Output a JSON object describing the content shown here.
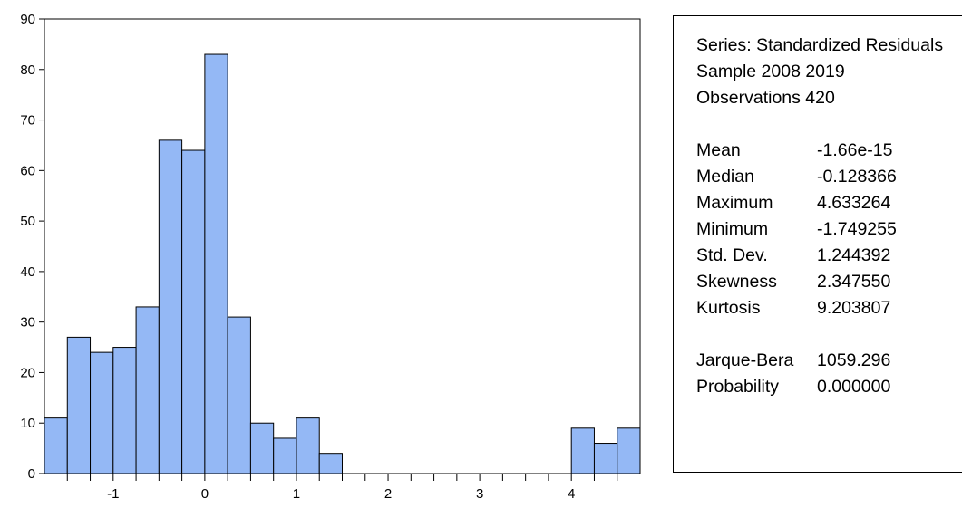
{
  "chart_data": {
    "type": "bar",
    "subtype": "histogram",
    "bin_width": 0.25,
    "bins": [
      {
        "from": -1.75,
        "to": -1.5,
        "count": 11
      },
      {
        "from": -1.5,
        "to": -1.25,
        "count": 27
      },
      {
        "from": -1.25,
        "to": -1.0,
        "count": 24
      },
      {
        "from": -1.0,
        "to": -0.75,
        "count": 25
      },
      {
        "from": -0.75,
        "to": -0.5,
        "count": 33
      },
      {
        "from": -0.5,
        "to": -0.25,
        "count": 66
      },
      {
        "from": -0.25,
        "to": 0.0,
        "count": 64
      },
      {
        "from": 0.0,
        "to": 0.25,
        "count": 83
      },
      {
        "from": 0.25,
        "to": 0.5,
        "count": 31
      },
      {
        "from": 0.5,
        "to": 0.75,
        "count": 10
      },
      {
        "from": 0.75,
        "to": 1.0,
        "count": 7
      },
      {
        "from": 1.0,
        "to": 1.25,
        "count": 11
      },
      {
        "from": 1.25,
        "to": 1.5,
        "count": 4
      },
      {
        "from": 4.0,
        "to": 4.25,
        "count": 9
      },
      {
        "from": 4.25,
        "to": 4.5,
        "count": 6
      },
      {
        "from": 4.5,
        "to": 4.75,
        "count": 9
      }
    ],
    "xlim": [
      -1.75,
      4.75
    ],
    "ylim": [
      0,
      90
    ],
    "x_ticks": [
      -1,
      0,
      1,
      2,
      3,
      4
    ],
    "y_ticks": [
      0,
      10,
      20,
      30,
      40,
      50,
      60,
      70,
      80,
      90
    ],
    "grid": false,
    "bar_color": "#94b8f5",
    "bar_edge_color": "#000000"
  },
  "stats": {
    "series": "Series: Standardized Residuals",
    "sample": "Sample 2008 2019",
    "observations": "Observations 420",
    "rows": [
      {
        "label": "Mean",
        "value": "-1.66e-15"
      },
      {
        "label": "Median",
        "value": "-0.128366"
      },
      {
        "label": "Maximum",
        "value": "4.633264"
      },
      {
        "label": "Minimum",
        "value": "-1.749255"
      },
      {
        "label": "Std. Dev.",
        "value": "1.244392"
      },
      {
        "label": "Skewness",
        "value": "2.347550"
      },
      {
        "label": "Kurtosis",
        "value": "9.203807"
      }
    ],
    "tests": [
      {
        "label": "Jarque-Bera",
        "value": "1059.296"
      },
      {
        "label": "Probability",
        "value": "0.000000"
      }
    ]
  }
}
